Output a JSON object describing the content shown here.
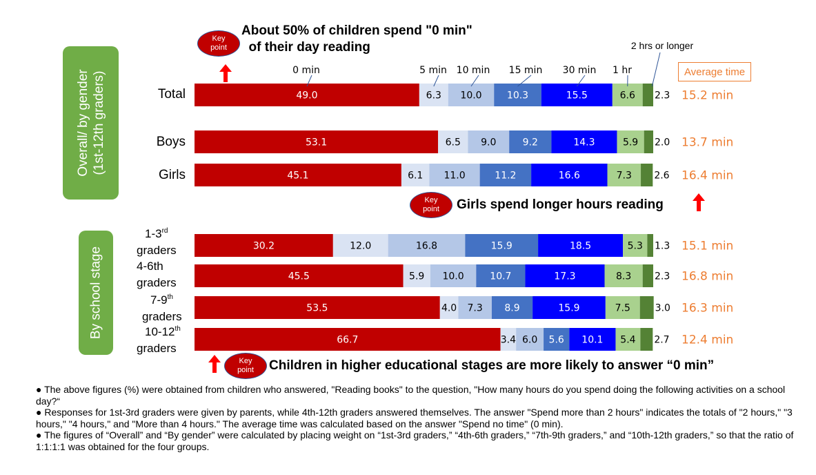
{
  "callouts": {
    "key_point_label": "Key\npoint",
    "top": "About 50% of children spend \"0 min\"\n  of their day reading",
    "middle": "Girls  spend longer hours reading",
    "bottom": "Children in higher educational stages are more likely to answer “0 min”"
  },
  "group_labels": {
    "overall": "Overall/ by gender\n(1st-12th graders)",
    "stage": "By school stage"
  },
  "average_time_header": "Average time",
  "notes": [
    "● The above figures (%) were obtained from children who answered, \"Reading books\" to the question, \"How many hours do you spend doing the following activities on a school day?“",
    "● Responses for 1st-3rd graders were given by parents, while 4th-12th graders answered themselves. The answer \"Spend more than 2 hours\" indicates the totals of \"2 hours,\" \"3 hours,\" \"4 hours,\" and \"More than 4 hours.\" The average time was calculated based on the answer \"Spend no time\" (0 min).",
    "● The figures of “Overall” and “By gender” were calculated by placing weight on “1st-3rd graders,” “4th-6th graders,” “7th-9th graders,” and “10th-12th graders,” so that the ratio of 1:1:1:1 was obtained for the four groups."
  ],
  "colors": {
    "0 min": "#c00000",
    "5 min": "#dae3f3",
    "10 min": "#b4c7e7",
    "15 min": "#4472c4",
    "30 min": "#0000ff",
    "1 hr": "#a9d18e",
    "2 hrs or longer": "#548235",
    "average": "#ed7d31",
    "group_box": "#70ad47"
  },
  "chart_data": {
    "type": "bar",
    "orientation": "horizontal",
    "stacked": true,
    "unit": "%",
    "xlim": [
      0,
      100
    ],
    "grid": false,
    "legend": "category labels above the Total bar",
    "categories": [
      "Total",
      "Boys",
      "Girls",
      "1-3rd graders",
      "4-6th graders",
      "7-9th graders",
      "10-12th graders"
    ],
    "series": [
      {
        "name": "0 min",
        "values": [
          49.0,
          53.1,
          45.1,
          30.2,
          45.5,
          53.5,
          66.7
        ]
      },
      {
        "name": "5 min",
        "values": [
          6.3,
          6.5,
          6.1,
          12.0,
          5.9,
          4.0,
          3.4
        ]
      },
      {
        "name": "10 min",
        "values": [
          10.0,
          9.0,
          11.0,
          16.8,
          10.0,
          7.3,
          6.0
        ]
      },
      {
        "name": "15 min",
        "values": [
          10.3,
          9.2,
          11.2,
          15.9,
          10.7,
          8.9,
          5.6
        ]
      },
      {
        "name": "30 min",
        "values": [
          15.5,
          14.3,
          16.6,
          18.5,
          17.3,
          15.9,
          10.1
        ]
      },
      {
        "name": "1 hr",
        "values": [
          6.6,
          5.9,
          7.3,
          5.3,
          8.3,
          7.5,
          5.4
        ]
      },
      {
        "name": "2 hrs or longer",
        "values": [
          2.3,
          2.0,
          2.6,
          1.3,
          2.3,
          3.0,
          2.7
        ]
      }
    ],
    "average_time": [
      "15.2 min",
      "13.7 min",
      "16.4 min",
      "15.1 min",
      "16.8 min",
      "16.3 min",
      "12.4 min"
    ],
    "value_labels": [
      [
        "49.0",
        "6.3",
        "10.0",
        "10.3",
        "15.5",
        "6.6",
        "2.3"
      ],
      [
        "53.1",
        "6.5",
        "9.0",
        "9.2",
        "14.3",
        "5.9",
        "2.0"
      ],
      [
        "45.1",
        "6.1",
        "11.0",
        "11.2",
        "16.6",
        "7.3",
        "2.6"
      ],
      [
        "30.2",
        "12.0",
        "16.8",
        "15.9",
        "18.5",
        "5.3",
        "1.3"
      ],
      [
        "45.5",
        "5.9",
        "10.0",
        "10.7",
        "17.3",
        "8.3",
        "2.3"
      ],
      [
        "53.5",
        "4.0",
        "7.3",
        "8.9",
        "15.9",
        "7.5",
        "3.0"
      ],
      [
        "66.7",
        "3.4",
        "6.0",
        "5.6",
        "10.1",
        "5.4",
        "2.7"
      ]
    ]
  }
}
